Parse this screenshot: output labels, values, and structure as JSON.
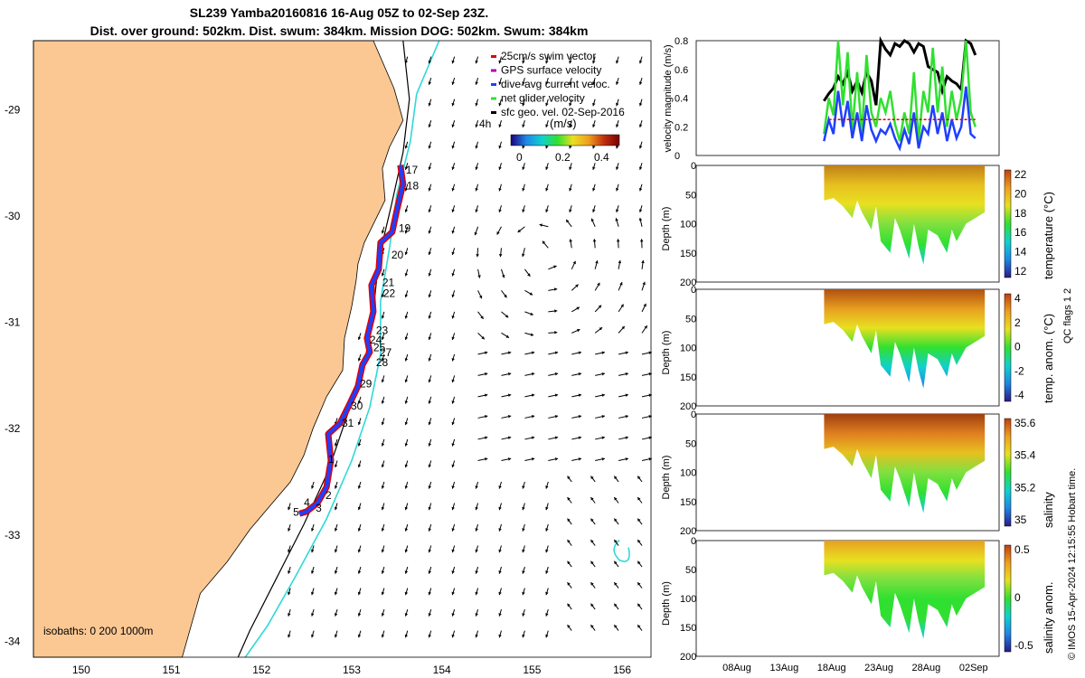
{
  "header": {
    "title": "SL239 Yamba20160816 16-Aug 05Z to 02-Sep 23Z.",
    "subtitle": "Dist. over ground: 502km. Dist. swum: 384km. Mission DOG: 502km. Swum: 384km"
  },
  "colors": {
    "land": "#FBC894",
    "track": "#1F3FFF",
    "swim_vector": "#E00000",
    "gps_velocity": "#B000B0",
    "net_velocity": "#30E030",
    "isobath_200": "#000000",
    "isobath_1000": "#30D8D8"
  },
  "map": {
    "lon_ticks": [
      "150",
      "151",
      "152",
      "153",
      "154",
      "155",
      "156"
    ],
    "lat_ticks": [
      "-29",
      "-30",
      "-31",
      "-32",
      "-33",
      "-34"
    ],
    "legend": [
      {
        "label": "25cm/s swim vector",
        "color": "#E00000"
      },
      {
        "label": "GPS surface velocity",
        "color": "#B000B0"
      },
      {
        "label": "dive-avg current veloc.",
        "color": "#1F3FFF"
      },
      {
        "label": "net glider velocity",
        "color": "#30E030"
      },
      {
        "label": "sfc geo. vel. 02-Sep-2016",
        "color": "#000000"
      }
    ],
    "colorbar": {
      "label": "(m/s)",
      "ticks": [
        "0",
        "0.2",
        "0.4"
      ],
      "note": "4h"
    },
    "isobaths_label": "isobaths: 0   200   1000m",
    "day_labels": [
      {
        "label": "17",
        "lon": 153.58,
        "lat": -29.6
      },
      {
        "label": "18",
        "lon": 153.59,
        "lat": -29.75
      },
      {
        "label": "19",
        "lon": 153.5,
        "lat": -30.15
      },
      {
        "label": "20",
        "lon": 153.42,
        "lat": -30.4
      },
      {
        "label": "21",
        "lon": 153.32,
        "lat": -30.66
      },
      {
        "label": "22",
        "lon": 153.33,
        "lat": -30.76
      },
      {
        "label": "23",
        "lon": 153.25,
        "lat": -31.11
      },
      {
        "label": "24",
        "lon": 153.18,
        "lat": -31.2
      },
      {
        "label": "25",
        "lon": 153.22,
        "lat": -31.27
      },
      {
        "label": "27",
        "lon": 153.29,
        "lat": -31.32
      },
      {
        "label": "28",
        "lon": 153.25,
        "lat": -31.41
      },
      {
        "label": "29",
        "lon": 153.07,
        "lat": -31.61
      },
      {
        "label": "30",
        "lon": 152.97,
        "lat": -31.82
      },
      {
        "label": "31",
        "lon": 152.87,
        "lat": -31.98
      },
      {
        "label": "1",
        "lon": 152.72,
        "lat": -32.32
      },
      {
        "label": "2",
        "lon": 152.69,
        "lat": -32.66
      },
      {
        "label": "3",
        "lon": 152.58,
        "lat": -32.78
      },
      {
        "label": "4",
        "lon": 152.45,
        "lat": -32.73
      },
      {
        "label": "5",
        "lon": 152.33,
        "lat": -32.82
      }
    ]
  },
  "chart_data": [
    {
      "type": "line",
      "ylabel": "velocity magnitude (m/s)",
      "ylim": [
        0,
        0.8
      ],
      "yticks": [
        "0",
        "0.2",
        "0.4",
        "0.6",
        "0.8"
      ],
      "series": [
        {
          "name": "black",
          "color": "#000000",
          "x": [
            17.0,
            17.5,
            18.0,
            18.5,
            19.0,
            19.5,
            20.0,
            20.5,
            21.0,
            21.5,
            22.0,
            22.5,
            23.0,
            23.5,
            24.0,
            24.5,
            25.0,
            25.5,
            26.0,
            26.5,
            27.0,
            27.5,
            28.0,
            28.5,
            29.0,
            29.5,
            30.0,
            30.5,
            31.0,
            31.5,
            32.0,
            32.5,
            33.0
          ],
          "y": [
            0.38,
            0.43,
            0.47,
            0.55,
            0.5,
            0.58,
            0.45,
            0.52,
            0.44,
            0.58,
            0.52,
            0.35,
            0.8,
            0.74,
            0.7,
            0.78,
            0.76,
            0.8,
            0.78,
            0.72,
            0.78,
            0.76,
            0.62,
            0.6,
            0.58,
            0.45,
            0.55,
            0.52,
            0.5,
            0.46,
            0.8,
            0.78,
            0.7
          ]
        },
        {
          "name": "green",
          "color": "#30E030",
          "x": [
            17.0,
            17.5,
            18.0,
            18.5,
            19.0,
            19.5,
            20.0,
            20.5,
            21.0,
            21.5,
            22.0,
            22.5,
            23.0,
            23.5,
            24.0,
            24.5,
            25.0,
            25.5,
            26.0,
            26.5,
            27.0,
            27.5,
            28.0,
            28.5,
            29.0,
            29.5,
            30.0,
            30.5,
            31.0,
            31.5,
            32.0,
            32.5,
            33.0
          ],
          "y": [
            0.15,
            0.4,
            0.28,
            0.8,
            0.35,
            0.72,
            0.18,
            0.58,
            0.15,
            0.7,
            0.3,
            0.2,
            0.4,
            0.3,
            0.45,
            0.22,
            0.1,
            0.3,
            0.15,
            0.58,
            0.1,
            0.45,
            0.3,
            0.75,
            0.3,
            0.62,
            0.2,
            0.45,
            0.25,
            0.4,
            0.8,
            0.3,
            0.2
          ]
        },
        {
          "name": "blue",
          "color": "#1F3FFF",
          "x": [
            17.0,
            17.5,
            18.0,
            18.5,
            19.0,
            19.5,
            20.0,
            20.5,
            21.0,
            21.5,
            22.0,
            22.5,
            23.0,
            23.5,
            24.0,
            24.5,
            25.0,
            25.5,
            26.0,
            26.5,
            27.0,
            27.5,
            28.0,
            28.5,
            29.0,
            29.5,
            30.0,
            30.5,
            31.0,
            31.5,
            32.0,
            32.5,
            33.0
          ],
          "y": [
            0.1,
            0.25,
            0.15,
            0.45,
            0.2,
            0.38,
            0.12,
            0.3,
            0.1,
            0.35,
            0.18,
            0.1,
            0.18,
            0.15,
            0.22,
            0.12,
            0.05,
            0.18,
            0.08,
            0.3,
            0.05,
            0.2,
            0.15,
            0.35,
            0.15,
            0.3,
            0.1,
            0.25,
            0.12,
            0.2,
            0.48,
            0.15,
            0.12
          ]
        },
        {
          "name": "red",
          "color": "#E00000",
          "x": [
            17.5,
            33.0
          ],
          "y": [
            0.25,
            0.25
          ]
        }
      ]
    },
    {
      "type": "heatmap",
      "ylabel": "Depth (m)",
      "yticks": [
        "0",
        "50",
        "100",
        "150",
        "200"
      ],
      "colorbar_label": "temperature (°C)",
      "colorbar_ticks": [
        "22",
        "20",
        "18",
        "16",
        "14",
        "12"
      ],
      "colormap": [
        "#2A1A8A",
        "#1E88E5",
        "#10D0D0",
        "#30E030",
        "#E8E020",
        "#F0A020",
        "#C04010"
      ]
    },
    {
      "type": "heatmap",
      "ylabel": "Depth (m)",
      "yticks": [
        "0",
        "50",
        "100",
        "150",
        "200"
      ],
      "colorbar_label": "temp. anom. (°C)",
      "colorbar_ticks": [
        "4",
        "2",
        "0",
        "-2",
        "-4"
      ],
      "colormap": [
        "#2A1A8A",
        "#1E88E5",
        "#10D0D0",
        "#30E030",
        "#E8E020",
        "#F0A020",
        "#C04010"
      ]
    },
    {
      "type": "heatmap",
      "ylabel": "Depth (m)",
      "yticks": [
        "0",
        "50",
        "100",
        "150",
        "200"
      ],
      "colorbar_label": "salinity",
      "colorbar_ticks": [
        "35.6",
        "35.4",
        "35.2",
        "35"
      ],
      "colormap": [
        "#2A1A8A",
        "#1E88E5",
        "#10D0D0",
        "#30E030",
        "#E8E020",
        "#F0A020",
        "#C04010"
      ]
    },
    {
      "type": "heatmap",
      "ylabel": "Depth (m)",
      "yticks": [
        "0",
        "50",
        "100",
        "150",
        "200"
      ],
      "colorbar_label": "salinity anom.",
      "colorbar_ticks": [
        "0.5",
        "0",
        "-0.5"
      ],
      "xticks": [
        "08Aug",
        "13Aug",
        "18Aug",
        "23Aug",
        "28Aug",
        "02Sep"
      ],
      "colormap": [
        "#2A1A8A",
        "#1E88E5",
        "#10D0D0",
        "#30E030",
        "#E8E020",
        "#F0A020",
        "#C04010"
      ]
    }
  ],
  "side": {
    "qc_label": "QC flags 1  2",
    "copyright": "© IMOS 15-Apr-2024 12:15:55 Hobart time."
  }
}
